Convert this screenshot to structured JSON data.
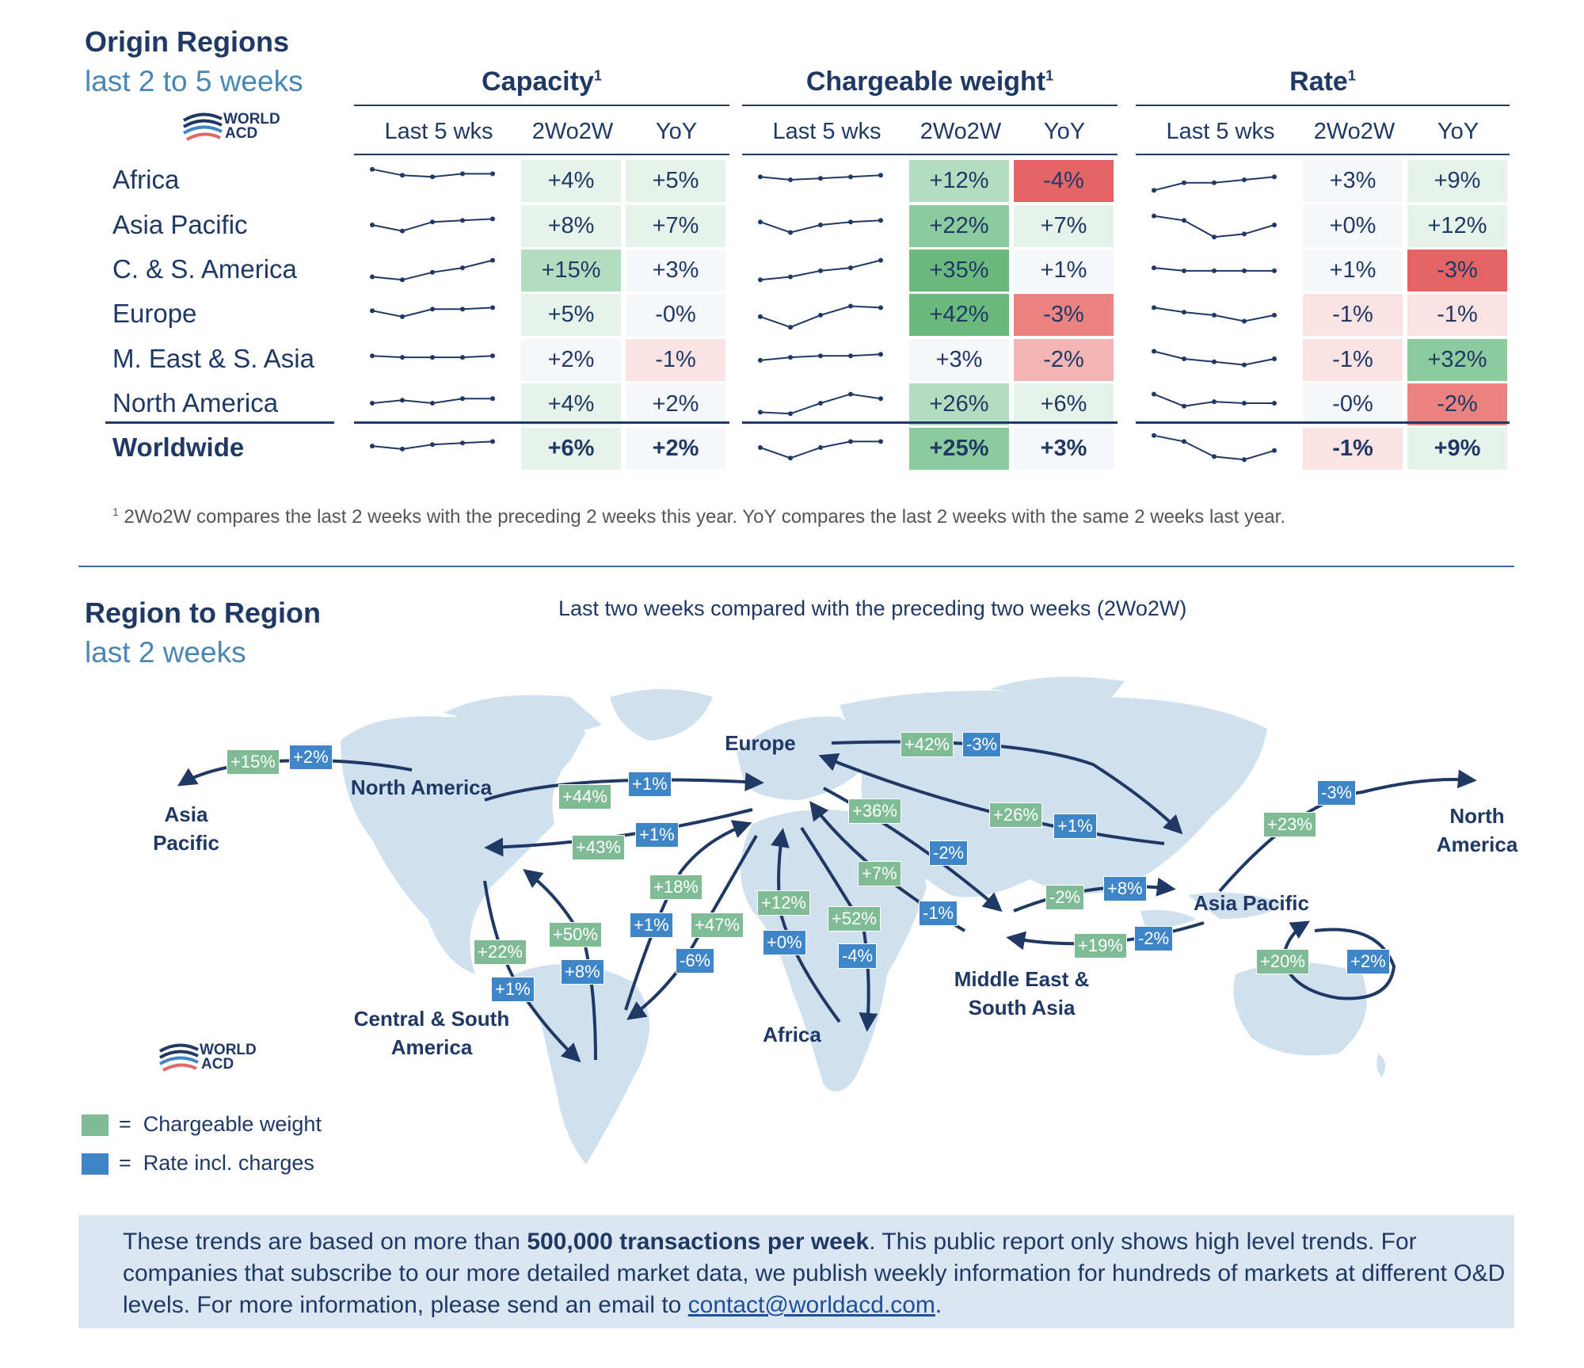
{
  "origin": {
    "title": "Origin Regions",
    "subtitle": "last 2 to 5 weeks",
    "logo_text": [
      "WORLD",
      "ACD"
    ],
    "groups": [
      {
        "title": "Capacity",
        "sup": "1",
        "columns": [
          "Last 5 wks",
          "2Wo2W",
          "YoY"
        ]
      },
      {
        "title": "Chargeable weight",
        "sup": "1",
        "columns": [
          "Last 5 wks",
          "2Wo2W",
          "YoY"
        ]
      },
      {
        "title": "Rate",
        "sup": "1",
        "columns": [
          "Last 5 wks",
          "2Wo2W",
          "YoY"
        ]
      }
    ],
    "rows": [
      {
        "region": "Africa",
        "capacity": {
          "w2": "+4%",
          "yoy": "+5%",
          "spark": [
            0.15,
            0.35,
            0.4,
            0.3,
            0.3
          ]
        },
        "weight": {
          "w2": "+12%",
          "yoy": "-4%",
          "spark": [
            0.4,
            0.5,
            0.45,
            0.4,
            0.35
          ]
        },
        "rate": {
          "w2": "+3%",
          "yoy": "+9%",
          "spark": [
            0.85,
            0.6,
            0.6,
            0.5,
            0.4
          ]
        }
      },
      {
        "region": "Asia Pacific",
        "capacity": {
          "w2": "+8%",
          "yoy": "+7%",
          "spark": [
            0.5,
            0.7,
            0.4,
            0.35,
            0.3
          ]
        },
        "weight": {
          "w2": "+22%",
          "yoy": "+7%",
          "spark": [
            0.4,
            0.75,
            0.5,
            0.4,
            0.35
          ]
        },
        "rate": {
          "w2": "+0%",
          "yoy": "+12%",
          "spark": [
            0.2,
            0.35,
            0.9,
            0.8,
            0.5
          ]
        }
      },
      {
        "region": "C. & S. America",
        "capacity": {
          "w2": "+15%",
          "yoy": "+3%",
          "spark": [
            0.75,
            0.85,
            0.6,
            0.45,
            0.2
          ]
        },
        "weight": {
          "w2": "+35%",
          "yoy": "+1%",
          "spark": [
            0.85,
            0.75,
            0.55,
            0.45,
            0.2
          ]
        },
        "rate": {
          "w2": "+1%",
          "yoy": "-3%",
          "spark": [
            0.45,
            0.55,
            0.55,
            0.55,
            0.55
          ]
        }
      },
      {
        "region": "Europe",
        "capacity": {
          "w2": "+5%",
          "yoy": "-0%",
          "spark": [
            0.4,
            0.6,
            0.35,
            0.35,
            0.3
          ]
        },
        "weight": {
          "w2": "+42%",
          "yoy": "-3%",
          "spark": [
            0.6,
            0.95,
            0.55,
            0.25,
            0.3
          ]
        },
        "rate": {
          "w2": "-1%",
          "yoy": "-1%",
          "spark": [
            0.3,
            0.45,
            0.55,
            0.75,
            0.55
          ]
        }
      },
      {
        "region": "M. East & S. Asia",
        "capacity": {
          "w2": "+2%",
          "yoy": "-1%",
          "spark": [
            0.4,
            0.45,
            0.45,
            0.45,
            0.4
          ]
        },
        "weight": {
          "w2": "+3%",
          "yoy": "-2%",
          "spark": [
            0.55,
            0.45,
            0.4,
            0.4,
            0.35
          ]
        },
        "rate": {
          "w2": "-1%",
          "yoy": "+32%",
          "spark": [
            0.25,
            0.5,
            0.6,
            0.7,
            0.5
          ]
        }
      },
      {
        "region": "North America",
        "capacity": {
          "w2": "+4%",
          "yoy": "+2%",
          "spark": [
            0.5,
            0.4,
            0.5,
            0.35,
            0.35
          ]
        },
        "weight": {
          "w2": "+26%",
          "yoy": "+6%",
          "spark": [
            0.8,
            0.85,
            0.5,
            0.2,
            0.35
          ]
        },
        "rate": {
          "w2": "-0%",
          "yoy": "-2%",
          "spark": [
            0.2,
            0.6,
            0.45,
            0.5,
            0.5
          ]
        }
      },
      {
        "region": "Worldwide",
        "bold": true,
        "capacity": {
          "w2": "+6%",
          "yoy": "+2%",
          "spark": [
            0.45,
            0.55,
            0.4,
            0.35,
            0.3
          ]
        },
        "weight": {
          "w2": "+25%",
          "yoy": "+3%",
          "spark": [
            0.5,
            0.85,
            0.5,
            0.3,
            0.3
          ]
        },
        "rate": {
          "w2": "-1%",
          "yoy": "+9%",
          "spark": [
            0.1,
            0.3,
            0.8,
            0.9,
            0.6
          ]
        }
      }
    ],
    "footnote_sup": "1",
    "footnote": "2Wo2W compares the last 2 weeks with the preceding 2 weeks this year. YoY compares the last 2 weeks with the same 2 weeks last year."
  },
  "colors": {
    "green_light": "#e6f3ea",
    "green_mid": "#b4dcc0",
    "green_strong": "#8ccb9d",
    "green_darkest": "#6cb97f",
    "red_light": "#fbe3e3",
    "red_mid": "#f3b4b4",
    "red_strong": "#ec8383",
    "red_darkest": "#e36464",
    "neutral": "#f5f7fa",
    "navy": "#1f3864",
    "tag_green": "#7fbc96",
    "tag_blue": "#3f86c8"
  },
  "region_map": {
    "title": "Region to Region",
    "subtitle": "last 2 weeks",
    "caption": "Last two weeks compared with the preceding two weeks (2Wo2W)",
    "labels": {
      "asia_pacific_left": "Asia Pacific",
      "north_america": "North America",
      "europe": "Europe",
      "north_america_right": "North America",
      "asia_pacific": "Asia Pacific",
      "middle_east": "Middle East & South Asia",
      "africa": "Africa",
      "cs_america": "Central & South America"
    },
    "tags": [
      {
        "text": "+15%",
        "kind": "weight"
      },
      {
        "text": "+2%",
        "kind": "rate"
      },
      {
        "text": "+44%",
        "kind": "weight"
      },
      {
        "text": "+1%",
        "kind": "rate"
      },
      {
        "text": "+43%",
        "kind": "weight"
      },
      {
        "text": "+1%",
        "kind": "rate"
      },
      {
        "text": "+42%",
        "kind": "weight"
      },
      {
        "text": "-3%",
        "kind": "rate"
      },
      {
        "text": "+36%",
        "kind": "weight"
      },
      {
        "text": "-2%",
        "kind": "rate"
      },
      {
        "text": "+26%",
        "kind": "weight"
      },
      {
        "text": "+1%",
        "kind": "rate"
      },
      {
        "text": "+7%",
        "kind": "weight"
      },
      {
        "text": "-1%",
        "kind": "rate"
      },
      {
        "text": "+18%",
        "kind": "weight"
      },
      {
        "text": "+1%",
        "kind": "rate"
      },
      {
        "text": "+47%",
        "kind": "weight"
      },
      {
        "text": "-6%",
        "kind": "rate"
      },
      {
        "text": "+12%",
        "kind": "weight"
      },
      {
        "text": "+0%",
        "kind": "rate"
      },
      {
        "text": "+52%",
        "kind": "weight"
      },
      {
        "text": "-4%",
        "kind": "rate"
      },
      {
        "text": "+50%",
        "kind": "weight"
      },
      {
        "text": "+8%",
        "kind": "rate"
      },
      {
        "text": "+22%",
        "kind": "weight"
      },
      {
        "text": "+1%",
        "kind": "rate"
      },
      {
        "text": "-2%",
        "kind": "weight"
      },
      {
        "text": "+8%",
        "kind": "rate"
      },
      {
        "text": "+19%",
        "kind": "weight"
      },
      {
        "text": "-2%",
        "kind": "rate"
      },
      {
        "text": "+23%",
        "kind": "weight"
      },
      {
        "text": "-3%",
        "kind": "rate"
      },
      {
        "text": "+20%",
        "kind": "weight"
      },
      {
        "text": "+2%",
        "kind": "rate"
      }
    ],
    "legend": [
      {
        "label": "Chargeable weight",
        "kind": "weight"
      },
      {
        "label": "Rate incl. charges",
        "kind": "rate"
      }
    ],
    "legend_eq": "="
  },
  "info": {
    "text_before": "These trends are based on more than ",
    "text_bold": "500,000 transactions per week",
    "text_after": ". This public report only shows high level trends. For companies that subscribe to our more detailed market data, we publish weekly information for hundreds of markets at different O&D levels. For more information, please send an email to ",
    "email": "contact@worldacd.com",
    "text_end": "."
  }
}
